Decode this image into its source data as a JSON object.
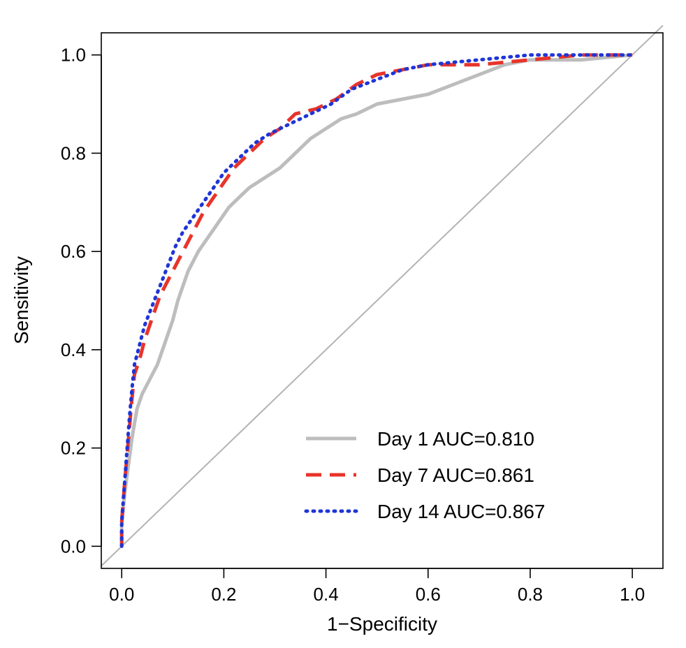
{
  "chart_data": {
    "type": "line",
    "title": "",
    "xlabel": "1−Specificity",
    "ylabel": "Sensitivity",
    "xlim": [
      -0.04,
      1.06
    ],
    "ylim": [
      -0.045,
      1.045
    ],
    "x_ticks": [
      "0.0",
      "0.2",
      "0.4",
      "0.6",
      "0.8",
      "1.0"
    ],
    "y_ticks": [
      "0.0",
      "0.2",
      "0.4",
      "0.6",
      "0.8",
      "1.0"
    ],
    "grid": false,
    "legend_position": "bottom-right",
    "reference_line": {
      "from": [
        -0.04,
        -0.04
      ],
      "to": [
        1.06,
        1.06
      ],
      "color": "#b3b3b3"
    },
    "series": [
      {
        "name": "Day 1 AUC=0.810",
        "color": "#bdbdbd",
        "style": "solid",
        "points": [
          [
            0,
            0
          ],
          [
            0,
            0.04
          ],
          [
            0.005,
            0.1
          ],
          [
            0.01,
            0.14
          ],
          [
            0.015,
            0.18
          ],
          [
            0.02,
            0.22
          ],
          [
            0.025,
            0.25
          ],
          [
            0.03,
            0.28
          ],
          [
            0.04,
            0.31
          ],
          [
            0.05,
            0.33
          ],
          [
            0.06,
            0.35
          ],
          [
            0.07,
            0.37
          ],
          [
            0.08,
            0.4
          ],
          [
            0.09,
            0.43
          ],
          [
            0.1,
            0.46
          ],
          [
            0.11,
            0.5
          ],
          [
            0.12,
            0.53
          ],
          [
            0.13,
            0.56
          ],
          [
            0.14,
            0.58
          ],
          [
            0.15,
            0.6
          ],
          [
            0.17,
            0.63
          ],
          [
            0.19,
            0.66
          ],
          [
            0.21,
            0.69
          ],
          [
            0.23,
            0.71
          ],
          [
            0.25,
            0.73
          ],
          [
            0.28,
            0.75
          ],
          [
            0.31,
            0.77
          ],
          [
            0.34,
            0.8
          ],
          [
            0.37,
            0.83
          ],
          [
            0.4,
            0.85
          ],
          [
            0.43,
            0.87
          ],
          [
            0.46,
            0.88
          ],
          [
            0.5,
            0.9
          ],
          [
            0.55,
            0.91
          ],
          [
            0.6,
            0.92
          ],
          [
            0.65,
            0.94
          ],
          [
            0.7,
            0.96
          ],
          [
            0.75,
            0.98
          ],
          [
            0.8,
            0.99
          ],
          [
            0.9,
            0.99
          ],
          [
            1,
            1
          ]
        ]
      },
      {
        "name": "Day 7 AUC=0.861",
        "color": "#e8342a",
        "style": "dashed",
        "points": [
          [
            0,
            0
          ],
          [
            0,
            0.05
          ],
          [
            0.005,
            0.12
          ],
          [
            0.01,
            0.18
          ],
          [
            0.015,
            0.24
          ],
          [
            0.02,
            0.3
          ],
          [
            0.025,
            0.35
          ],
          [
            0.035,
            0.38
          ],
          [
            0.045,
            0.42
          ],
          [
            0.055,
            0.45
          ],
          [
            0.065,
            0.48
          ],
          [
            0.075,
            0.51
          ],
          [
            0.085,
            0.53
          ],
          [
            0.1,
            0.56
          ],
          [
            0.12,
            0.6
          ],
          [
            0.14,
            0.64
          ],
          [
            0.16,
            0.68
          ],
          [
            0.18,
            0.71
          ],
          [
            0.2,
            0.74
          ],
          [
            0.22,
            0.77
          ],
          [
            0.25,
            0.8
          ],
          [
            0.28,
            0.83
          ],
          [
            0.31,
            0.85
          ],
          [
            0.34,
            0.88
          ],
          [
            0.38,
            0.89
          ],
          [
            0.42,
            0.91
          ],
          [
            0.46,
            0.94
          ],
          [
            0.5,
            0.96
          ],
          [
            0.55,
            0.97
          ],
          [
            0.6,
            0.98
          ],
          [
            0.7,
            0.98
          ],
          [
            0.8,
            0.99
          ],
          [
            0.9,
            1
          ],
          [
            1,
            1
          ]
        ]
      },
      {
        "name": "Day 14 AUC=0.867",
        "color": "#1f35d6",
        "style": "dotted",
        "points": [
          [
            0,
            0
          ],
          [
            0,
            0.05
          ],
          [
            0.005,
            0.12
          ],
          [
            0.01,
            0.19
          ],
          [
            0.015,
            0.26
          ],
          [
            0.02,
            0.32
          ],
          [
            0.025,
            0.37
          ],
          [
            0.035,
            0.41
          ],
          [
            0.045,
            0.45
          ],
          [
            0.06,
            0.49
          ],
          [
            0.075,
            0.53
          ],
          [
            0.09,
            0.57
          ],
          [
            0.105,
            0.61
          ],
          [
            0.12,
            0.64
          ],
          [
            0.14,
            0.67
          ],
          [
            0.16,
            0.7
          ],
          [
            0.18,
            0.73
          ],
          [
            0.2,
            0.76
          ],
          [
            0.23,
            0.79
          ],
          [
            0.26,
            0.82
          ],
          [
            0.29,
            0.84
          ],
          [
            0.33,
            0.86
          ],
          [
            0.37,
            0.88
          ],
          [
            0.41,
            0.9
          ],
          [
            0.45,
            0.93
          ],
          [
            0.5,
            0.95
          ],
          [
            0.55,
            0.97
          ],
          [
            0.6,
            0.98
          ],
          [
            0.7,
            0.99
          ],
          [
            0.8,
            1
          ],
          [
            1,
            1
          ]
        ]
      }
    ]
  }
}
